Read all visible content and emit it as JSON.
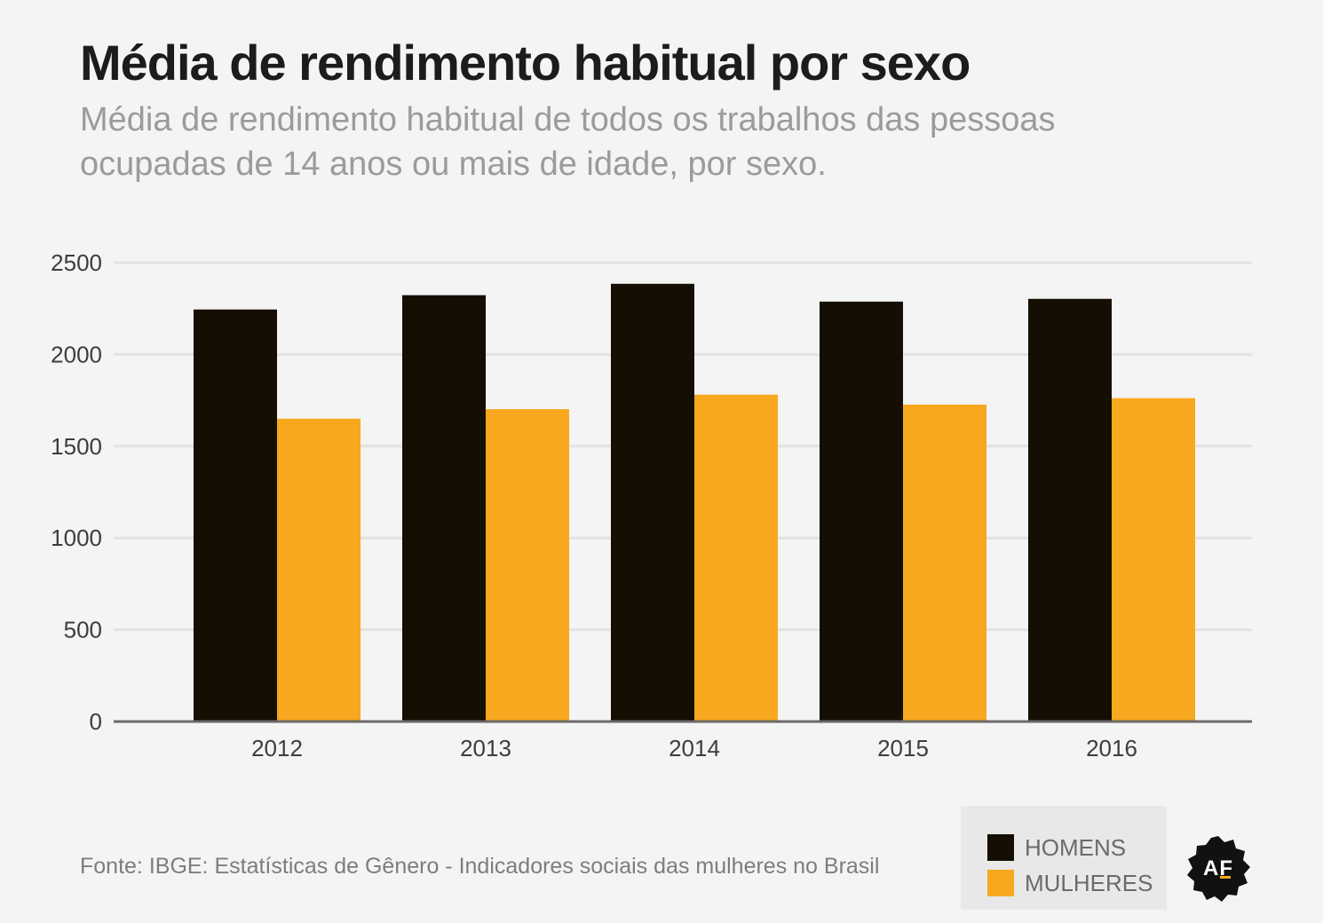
{
  "header": {
    "title": "Média de rendimento habitual por sexo",
    "subtitle": "Média de rendimento habitual de todos os trabalhos das pessoas ocupadas de 14 anos ou mais de idade, por sexo."
  },
  "footer": {
    "source": "Fonte: IBGE: Estatísticas de Gênero - Indicadores sociais das mulheres no Brasil",
    "logo_text": "AF"
  },
  "colors": {
    "homens": "#150e02",
    "mulheres": "#f7a81e",
    "gridline": "#e2e2e2",
    "axis": "#6a6a6a",
    "tick_text": "#3d3d3d"
  },
  "chart_data": {
    "type": "bar",
    "categories": [
      "2012",
      "2013",
      "2014",
      "2015",
      "2016"
    ],
    "series": [
      {
        "name": "HOMENS",
        "values": [
          2245,
          2323,
          2385,
          2288,
          2303
        ]
      },
      {
        "name": "MULHERES",
        "values": [
          1650,
          1702,
          1781,
          1727,
          1762
        ]
      }
    ],
    "y_ticks": [
      "0",
      "500",
      "1000",
      "1500",
      "2000",
      "2500"
    ],
    "ylim": [
      0,
      2500
    ],
    "grid": true,
    "legend_position": "bottom-right"
  }
}
